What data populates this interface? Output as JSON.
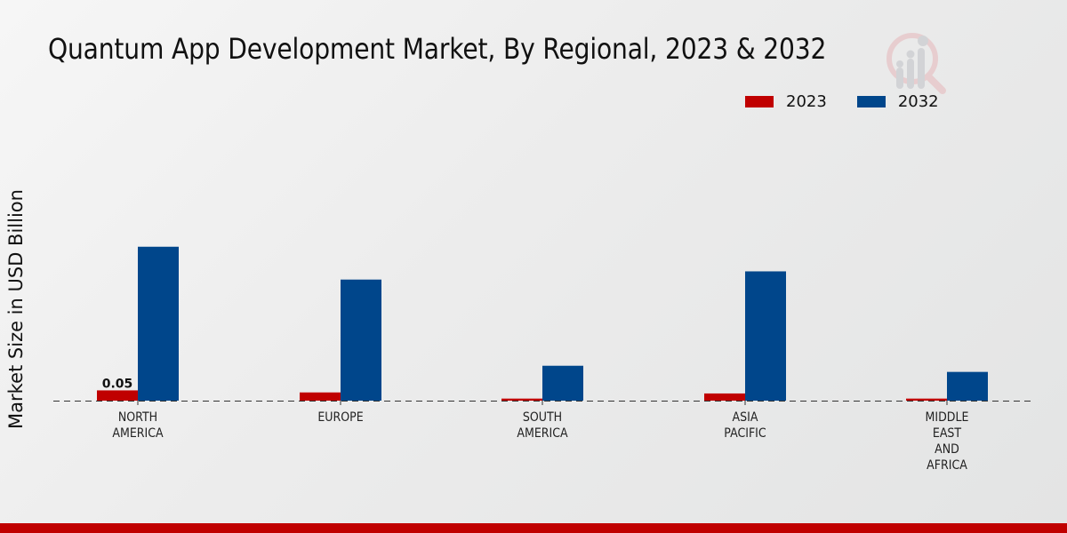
{
  "title": "Quantum App Development Market, By Regional, 2023 & 2032",
  "colors": {
    "2023": "#c00000",
    "2032": "#00468b",
    "footer": "#c00000"
  },
  "chart_data": {
    "type": "bar",
    "title": "Quantum App Development Market, By Regional, 2023 & 2032",
    "xlabel": "",
    "ylabel": "Market Size in USD Billion",
    "categories": [
      [
        "NORTH",
        "AMERICA"
      ],
      [
        "EUROPE"
      ],
      [
        "SOUTH",
        "AMERICA"
      ],
      [
        "ASIA",
        "PACIFIC"
      ],
      [
        "MIDDLE",
        "EAST",
        "AND",
        "AFRICA"
      ]
    ],
    "series": [
      {
        "name": "2023",
        "color": "#c00000",
        "values": [
          0.05,
          0.04,
          0.01,
          0.035,
          0.01
        ]
      },
      {
        "name": "2032",
        "color": "#00468b",
        "values": [
          0.75,
          0.59,
          0.17,
          0.63,
          0.14
        ]
      }
    ],
    "data_labels": [
      {
        "series": "2023",
        "category_index": 0,
        "text": "0.05"
      }
    ],
    "ylim": [
      0,
      1.1
    ],
    "grid": false,
    "legend": "top-right"
  }
}
